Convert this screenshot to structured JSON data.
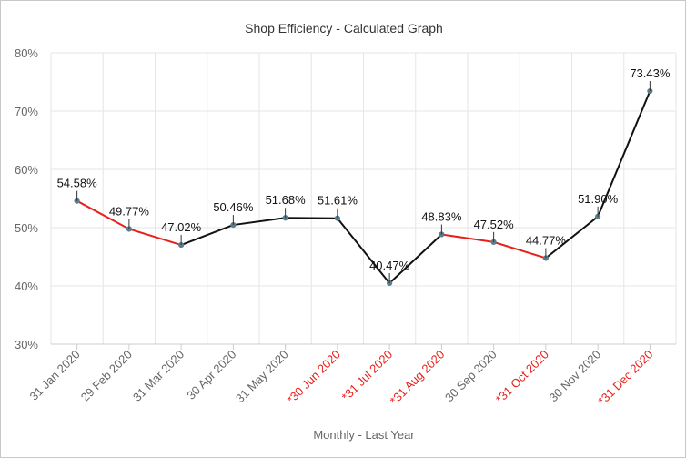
{
  "chart_data": {
    "type": "line",
    "title": "Shop Efficiency - Calculated Graph",
    "xlabel": "Monthly - Last Year",
    "ylabel": "",
    "ylim": [
      30,
      80
    ],
    "yticks": [
      30,
      40,
      50,
      60,
      70,
      80
    ],
    "ytick_labels": [
      "30%",
      "40%",
      "50%",
      "60%",
      "70%",
      "80%"
    ],
    "grid": true,
    "categories": [
      "31 Jan 2020",
      "29 Feb 2020",
      "31 Mar 2020",
      "30 Apr 2020",
      "31 May 2020",
      "*30 Jun 2020",
      "*31 Jul 2020",
      "*31 Aug 2020",
      "30 Sep 2020",
      "*31 Oct 2020",
      "30 Nov 2020",
      "*31 Dec 2020"
    ],
    "category_highlight": [
      false,
      false,
      false,
      false,
      false,
      true,
      true,
      true,
      false,
      true,
      false,
      true
    ],
    "values": [
      54.58,
      49.77,
      47.02,
      50.46,
      51.68,
      51.61,
      40.47,
      48.83,
      47.52,
      44.77,
      51.9,
      73.43
    ],
    "value_labels": [
      "54.58%",
      "49.77%",
      "47.02%",
      "50.46%",
      "51.68%",
      "51.61%",
      "40.47%",
      "48.83%",
      "47.52%",
      "44.77%",
      "51.90%",
      "73.43%"
    ],
    "segment_colors": [
      "#e8201b",
      "#e8201b",
      "#111111",
      "#111111",
      "#111111",
      "#111111",
      "#111111",
      "#e8201b",
      "#e8201b",
      "#111111",
      "#111111"
    ],
    "colors": {
      "line_dark": "#111111",
      "line_red": "#e8201b",
      "marker": "#5b7e8c",
      "grid": "#e6e6e6",
      "axis": "#cccccc",
      "tick_text": "#666666",
      "highlight_text": "#e8201b"
    }
  }
}
